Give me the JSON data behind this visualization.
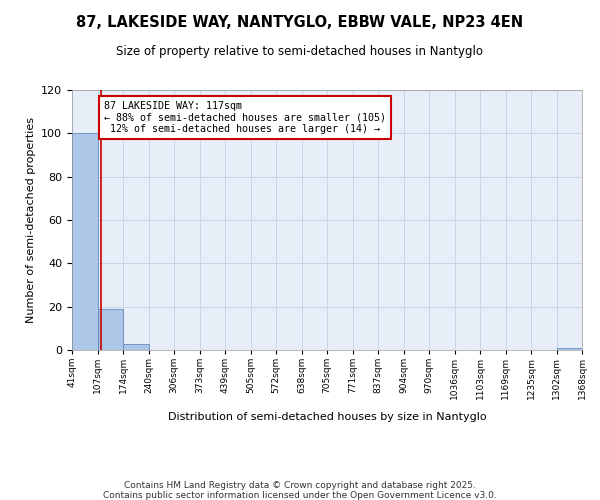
{
  "title_line1": "87, LAKESIDE WAY, NANTYGLO, EBBW VALE, NP23 4EN",
  "title_line2": "Size of property relative to semi-detached houses in Nantyglo",
  "xlabel": "Distribution of semi-detached houses by size in Nantyglo",
  "ylabel": "Number of semi-detached properties",
  "bin_labels": [
    "41sqm",
    "107sqm",
    "174sqm",
    "240sqm",
    "306sqm",
    "373sqm",
    "439sqm",
    "505sqm",
    "572sqm",
    "638sqm",
    "705sqm",
    "771sqm",
    "837sqm",
    "904sqm",
    "970sqm",
    "1036sqm",
    "1103sqm",
    "1169sqm",
    "1235sqm",
    "1302sqm",
    "1368sqm"
  ],
  "bar_heights": [
    100,
    19,
    3,
    0,
    0,
    0,
    0,
    0,
    0,
    0,
    0,
    0,
    0,
    0,
    0,
    0,
    0,
    0,
    0,
    1
  ],
  "bar_color": "#aec6e8",
  "bar_edge_color": "#5080b0",
  "subject_line_color": "#cc0000",
  "annotation_box_edge": "#cc0000",
  "pct_smaller": 88,
  "count_smaller": 105,
  "pct_larger": 12,
  "count_larger": 14,
  "ylim": [
    0,
    120
  ],
  "yticks": [
    0,
    20,
    40,
    60,
    80,
    100,
    120
  ],
  "grid_color": "#c8d4e8",
  "background_color": "#e8eef8",
  "footer": "Contains HM Land Registry data © Crown copyright and database right 2025.\nContains public sector information licensed under the Open Government Licence v3.0."
}
